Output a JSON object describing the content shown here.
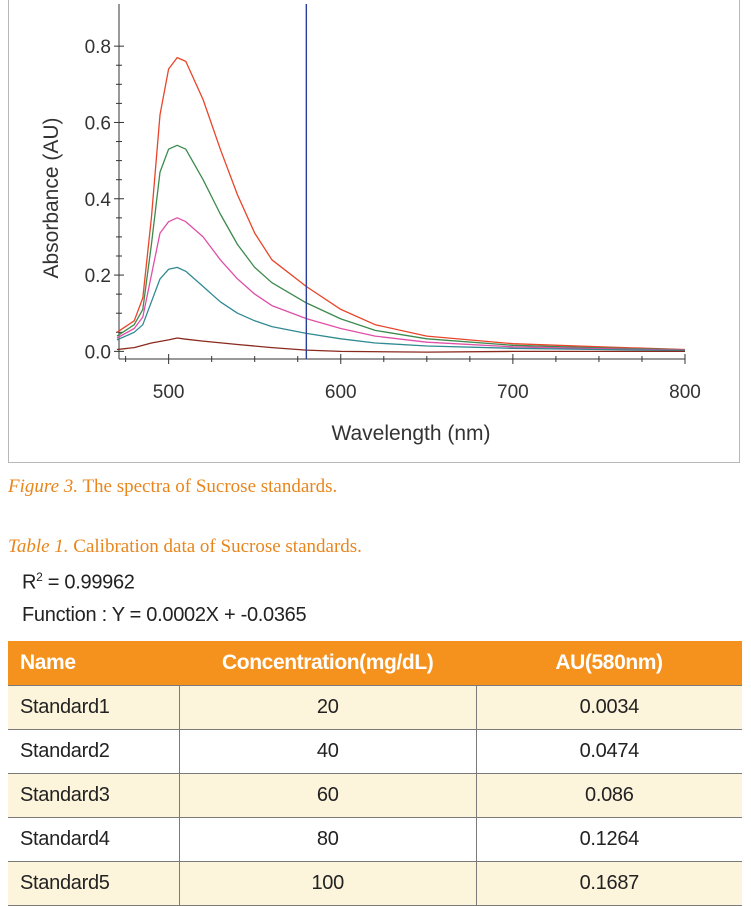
{
  "chart_data": {
    "type": "line",
    "xlabel": "Wavelength (nm)",
    "ylabel": "Absorbance (AU)",
    "xlim": [
      470,
      800
    ],
    "ylim": [
      -0.02,
      0.9
    ],
    "x_ticks": [
      500,
      600,
      700,
      800
    ],
    "y_ticks": [
      0.0,
      0.2,
      0.4,
      0.6,
      0.8
    ],
    "y_tick_labels": [
      "0.0",
      "0.2",
      "0.4",
      "0.6",
      "0.8"
    ],
    "marker_line_x": 580,
    "marker_color": "#2a3f9c",
    "series": [
      {
        "name": "Standard5",
        "color": "#e8452a",
        "x": [
          470,
          480,
          485,
          490,
          495,
          500,
          505,
          510,
          520,
          530,
          540,
          550,
          560,
          580,
          600,
          620,
          650,
          700,
          750,
          800
        ],
        "y": [
          0.05,
          0.08,
          0.14,
          0.35,
          0.62,
          0.74,
          0.77,
          0.76,
          0.66,
          0.53,
          0.41,
          0.31,
          0.24,
          0.17,
          0.11,
          0.07,
          0.04,
          0.02,
          0.012,
          0.005
        ]
      },
      {
        "name": "Standard4",
        "color": "#3c8a4c",
        "x": [
          470,
          480,
          485,
          490,
          495,
          500,
          505,
          510,
          520,
          530,
          540,
          550,
          560,
          580,
          600,
          620,
          650,
          700,
          750,
          800
        ],
        "y": [
          0.04,
          0.07,
          0.11,
          0.28,
          0.47,
          0.53,
          0.54,
          0.53,
          0.45,
          0.36,
          0.28,
          0.22,
          0.18,
          0.127,
          0.085,
          0.055,
          0.033,
          0.016,
          0.009,
          0.004
        ]
      },
      {
        "name": "Standard3",
        "color": "#e04fa8",
        "x": [
          470,
          480,
          485,
          490,
          495,
          500,
          505,
          510,
          520,
          530,
          540,
          550,
          560,
          580,
          600,
          620,
          650,
          700,
          750,
          800
        ],
        "y": [
          0.035,
          0.06,
          0.09,
          0.2,
          0.31,
          0.34,
          0.35,
          0.34,
          0.3,
          0.24,
          0.19,
          0.15,
          0.12,
          0.086,
          0.06,
          0.04,
          0.024,
          0.012,
          0.007,
          0.003
        ]
      },
      {
        "name": "Standard2",
        "color": "#2f8a92",
        "x": [
          470,
          480,
          485,
          490,
          495,
          500,
          505,
          510,
          520,
          530,
          540,
          550,
          560,
          580,
          600,
          620,
          650,
          700,
          750,
          800
        ],
        "y": [
          0.03,
          0.05,
          0.07,
          0.13,
          0.19,
          0.215,
          0.22,
          0.21,
          0.17,
          0.13,
          0.1,
          0.08,
          0.065,
          0.047,
          0.033,
          0.022,
          0.014,
          0.008,
          0.005,
          0.002
        ]
      },
      {
        "name": "Standard1",
        "color": "#8a2a1e",
        "x": [
          470,
          480,
          490,
          500,
          505,
          510,
          520,
          540,
          560,
          580,
          600,
          650,
          700,
          800
        ],
        "y": [
          0.005,
          0.01,
          0.022,
          0.03,
          0.035,
          0.032,
          0.027,
          0.018,
          0.01,
          0.0034,
          0.0,
          -0.002,
          0.0,
          0.0
        ]
      }
    ]
  },
  "figure_caption": {
    "label": "Figure 3.",
    "text": "The spectra of Sucrose standards."
  },
  "table_caption": {
    "label": "Table 1.",
    "text": "Calibration data of Sucrose standards."
  },
  "stats": {
    "r2_prefix": "R",
    "r2_sup": "2",
    "r2_value": " = 0.99962",
    "function_text": "Function : Y = 0.0002X + -0.0365"
  },
  "table": {
    "headers": [
      "Name",
      "Concentration(mg/dL)",
      "AU(580nm)"
    ],
    "rows": [
      [
        "Standard1",
        "20",
        "0.0034"
      ],
      [
        "Standard2",
        "40",
        "0.0474"
      ],
      [
        "Standard3",
        "60",
        "0.086"
      ],
      [
        "Standard4",
        "80",
        "0.1264"
      ],
      [
        "Standard5",
        "100",
        "0.1687"
      ]
    ]
  }
}
